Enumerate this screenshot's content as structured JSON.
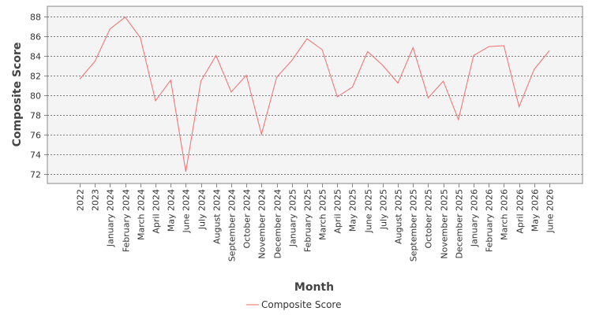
{
  "chart_data": {
    "type": "line",
    "title": "",
    "xlabel": "Month",
    "ylabel": "Composite Score",
    "ylim": [
      71.0,
      89.0
    ],
    "y_ticks": [
      72,
      74,
      76,
      78,
      80,
      82,
      84,
      86,
      88
    ],
    "grid": true,
    "legend_position": "bottom",
    "colors": {
      "line": "#f26d6d",
      "plot_background": "#f4f4f4",
      "grid": "#555555",
      "border": "#888888"
    },
    "categories": [
      "2022",
      "2023",
      "January 2024",
      "February 2024",
      "March 2024",
      "April 2024",
      "May 2024",
      "June 2024",
      "July 2024",
      "August 2024",
      "September 2024",
      "October 2024",
      "November 2024",
      "December 2024",
      "January 2025",
      "February 2025",
      "March 2025",
      "April 2025",
      "May 2025",
      "June 2025",
      "July 2025",
      "August 2025",
      "September 2025",
      "October 2025",
      "November 2025",
      "December 2025",
      "January 2026",
      "February 2026",
      "March 2026",
      "April 2026",
      "May 2026",
      "June 2026"
    ],
    "series": [
      {
        "name": "Composite Score",
        "values": [
          81.6,
          83.4,
          86.7,
          87.9,
          85.8,
          79.4,
          81.5,
          72.2,
          81.4,
          84.0,
          80.3,
          82.0,
          76.0,
          81.8,
          83.5,
          85.7,
          84.6,
          79.8,
          80.8,
          84.4,
          83.0,
          81.2,
          84.8,
          79.7,
          81.4,
          77.5,
          84.0,
          84.9,
          85.0,
          78.8,
          82.6,
          84.5
        ]
      }
    ]
  }
}
